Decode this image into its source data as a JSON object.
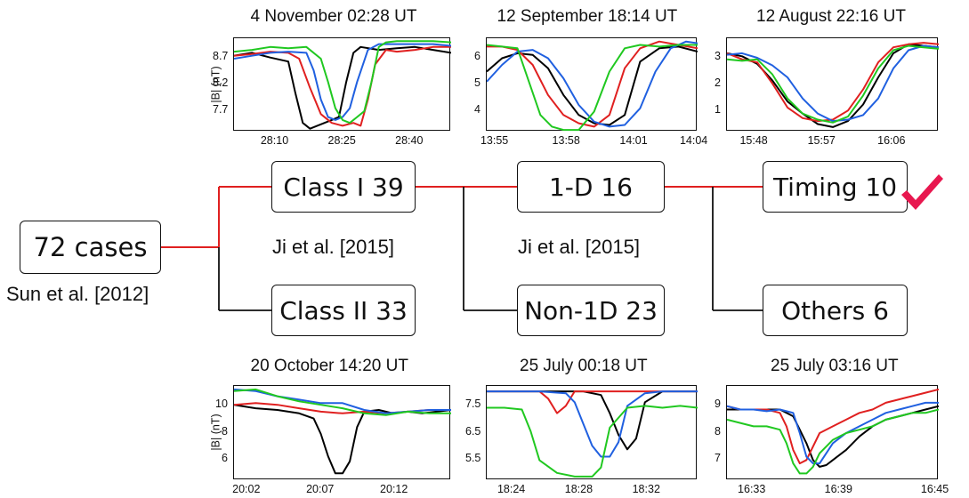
{
  "tree": {
    "root": {
      "label": "72 cases",
      "citation": "Sun et al. [2012]"
    },
    "class_one": {
      "label": "Class I 39"
    },
    "class_two": {
      "label": "Class II 33"
    },
    "split_one_citation": "Ji et al. [2015]",
    "one_d": {
      "label": "1-D 16"
    },
    "non_one_d": {
      "label": "Non-1D 23"
    },
    "split_two_citation": "Ji et al. [2015]",
    "timing": {
      "label": "Timing 10",
      "mark": "checkmark-icon"
    },
    "others": {
      "label": "Others 6"
    },
    "colors": {
      "accent": "#e02020",
      "line": "#111111",
      "check": "#e8174f"
    }
  },
  "chart_data": [
    {
      "type": "line",
      "title": "4 November 02:28 UT",
      "ylabel": "|B| (nT)",
      "yticks": [
        "8.7",
        "8.2",
        "7.7"
      ],
      "xticks": [
        "28:10",
        "28:25",
        "28:40"
      ],
      "xlim": [
        0,
        60
      ],
      "ylim": [
        7.35,
        8.95
      ],
      "series": [
        {
          "color": "#000000",
          "x": [
            0,
            5,
            10,
            15,
            17,
            19,
            21,
            23,
            25,
            27,
            29,
            31,
            33,
            35,
            40,
            45,
            50,
            55,
            60
          ],
          "y": [
            8.65,
            8.7,
            8.62,
            8.55,
            8.0,
            7.5,
            7.4,
            7.45,
            7.5,
            7.55,
            7.6,
            8.2,
            8.7,
            8.8,
            8.75,
            8.78,
            8.8,
            8.75,
            8.7
          ]
        },
        {
          "color": "#e02020",
          "x": [
            0,
            5,
            10,
            15,
            18,
            21,
            24,
            27,
            30,
            33,
            35,
            37,
            39,
            42,
            45,
            50,
            55,
            60
          ],
          "y": [
            8.65,
            8.68,
            8.72,
            8.7,
            8.6,
            8.1,
            7.65,
            7.5,
            7.45,
            7.5,
            7.45,
            7.9,
            8.5,
            8.75,
            8.72,
            8.75,
            8.8,
            8.8
          ]
        },
        {
          "color": "#2060e0",
          "x": [
            0,
            5,
            10,
            15,
            20,
            22,
            24,
            26,
            28,
            30,
            32,
            34,
            37,
            40,
            45,
            50,
            55,
            60
          ],
          "y": [
            8.6,
            8.65,
            8.7,
            8.72,
            8.7,
            8.4,
            7.9,
            7.6,
            7.55,
            7.6,
            7.75,
            8.2,
            8.75,
            8.85,
            8.85,
            8.85,
            8.85,
            8.82
          ]
        },
        {
          "color": "#20c820",
          "x": [
            0,
            5,
            10,
            15,
            20,
            24,
            26,
            28,
            30,
            32,
            34,
            36,
            38,
            40,
            42,
            45,
            50,
            55,
            60
          ],
          "y": [
            8.72,
            8.75,
            8.8,
            8.78,
            8.8,
            8.6,
            8.2,
            7.75,
            7.55,
            7.5,
            7.6,
            7.7,
            8.2,
            8.8,
            8.88,
            8.9,
            8.9,
            8.9,
            8.88
          ]
        }
      ]
    },
    {
      "type": "line",
      "title": "12 September 18:14 UT",
      "ylabel": "",
      "yticks": [
        "6",
        "5",
        "4"
      ],
      "xticks": [
        "13:55",
        "13:58",
        "14:01",
        "14:04"
      ],
      "xlim": [
        0,
        11
      ],
      "ylim": [
        3.5,
        6.3
      ],
      "series": [
        {
          "color": "#000000",
          "x": [
            0,
            0.8,
            1.6,
            2.4,
            3.2,
            4,
            4.8,
            5.6,
            6.4,
            7.2,
            8,
            9,
            10,
            11
          ],
          "y": [
            5.3,
            5.7,
            5.85,
            5.8,
            5.4,
            4.6,
            4.0,
            3.75,
            3.7,
            4.0,
            5.6,
            6.0,
            6.05,
            5.9
          ]
        },
        {
          "color": "#e02020",
          "x": [
            0,
            0.8,
            1.6,
            2.4,
            3.2,
            4,
            4.8,
            5.6,
            6.4,
            7.2,
            8,
            9,
            10,
            11
          ],
          "y": [
            6.05,
            6.05,
            5.95,
            5.5,
            4.6,
            4.0,
            3.75,
            3.65,
            4.0,
            5.4,
            6.0,
            6.2,
            6.1,
            6.0
          ]
        },
        {
          "color": "#2060e0",
          "x": [
            0,
            0.8,
            1.6,
            2.4,
            3.2,
            4,
            4.8,
            5.6,
            6.4,
            7.2,
            8,
            8.8,
            9.6,
            10.4,
            11
          ],
          "y": [
            5.0,
            5.5,
            5.9,
            5.95,
            5.7,
            5.1,
            4.3,
            3.8,
            3.65,
            3.7,
            4.2,
            5.3,
            6.0,
            6.2,
            6.15
          ]
        },
        {
          "color": "#20c820",
          "x": [
            0,
            0.8,
            1.6,
            2.2,
            2.8,
            3.4,
            4,
            4.8,
            5.6,
            6.4,
            7.2,
            8,
            9,
            10,
            11
          ],
          "y": [
            6.1,
            6.05,
            6.0,
            5.0,
            4.0,
            3.65,
            3.55,
            3.55,
            4.1,
            5.3,
            6.0,
            6.1,
            6.05,
            6.1,
            6.1
          ]
        }
      ]
    },
    {
      "type": "line",
      "title": "12 August 22:16 UT",
      "ylabel": "",
      "yticks": [
        "3",
        "2",
        "1"
      ],
      "xticks": [
        "15:48",
        "15:57",
        "16:06"
      ],
      "xlim": [
        0,
        28
      ],
      "ylim": [
        0.2,
        3.3
      ],
      "series": [
        {
          "color": "#000000",
          "x": [
            0,
            2,
            4,
            6,
            8,
            10,
            12,
            14,
            16,
            18,
            20,
            22,
            24,
            26,
            28
          ],
          "y": [
            2.8,
            2.7,
            2.45,
            1.9,
            1.2,
            0.8,
            0.45,
            0.35,
            0.55,
            1.1,
            2.0,
            2.8,
            3.1,
            3.05,
            3.0
          ]
        },
        {
          "color": "#e02020",
          "x": [
            0,
            2,
            4,
            6,
            8,
            10,
            12,
            14,
            16,
            18,
            20,
            22,
            24,
            26,
            28
          ],
          "y": [
            2.8,
            2.6,
            2.5,
            1.8,
            1.0,
            0.65,
            0.55,
            0.6,
            0.9,
            1.6,
            2.5,
            3.0,
            3.1,
            3.15,
            3.1
          ]
        },
        {
          "color": "#2060e0",
          "x": [
            0,
            2,
            4,
            6,
            8,
            10,
            12,
            14,
            16,
            18,
            20,
            22,
            24,
            26,
            28
          ],
          "y": [
            2.75,
            2.8,
            2.65,
            2.4,
            2.0,
            1.3,
            0.8,
            0.55,
            0.6,
            0.75,
            1.3,
            2.3,
            2.9,
            3.05,
            3.0
          ]
        },
        {
          "color": "#20c820",
          "x": [
            0,
            2,
            4,
            6,
            8,
            10,
            12,
            14,
            16,
            18,
            20,
            22,
            24,
            26,
            28
          ],
          "y": [
            2.6,
            2.55,
            2.6,
            2.1,
            1.3,
            0.8,
            0.6,
            0.5,
            0.7,
            1.4,
            2.3,
            2.9,
            3.05,
            3.0,
            2.95
          ]
        }
      ]
    },
    {
      "type": "line",
      "title": "20 October 14:20 UT",
      "ylabel": "|B| (nT)",
      "yticks": [
        "10",
        "8",
        "6"
      ],
      "xticks": [
        "20:02",
        "20:07",
        "20:12"
      ],
      "xlim": [
        0,
        15
      ],
      "ylim": [
        5.1,
        10.6
      ],
      "series": [
        {
          "color": "#000000",
          "x": [
            0,
            1.5,
            3,
            4.5,
            5.5,
            6,
            6.5,
            7,
            7.5,
            8,
            8.5,
            9,
            10,
            11,
            12,
            13,
            14,
            15
          ],
          "y": [
            9.5,
            9.3,
            9.2,
            9.0,
            8.7,
            7.8,
            6.5,
            5.5,
            5.5,
            6.2,
            8.2,
            9.1,
            9.2,
            9.0,
            9.1,
            9.0,
            9.1,
            9.2
          ]
        },
        {
          "color": "#e02020",
          "x": [
            0,
            1.5,
            3,
            4.5,
            6,
            7.5,
            9,
            10.5,
            12,
            13.5,
            15
          ],
          "y": [
            9.5,
            9.6,
            9.5,
            9.3,
            9.1,
            9.0,
            9.1,
            9.0,
            9.1,
            9.2,
            9.2
          ]
        },
        {
          "color": "#2060e0",
          "x": [
            0,
            1.5,
            3,
            4.5,
            6,
            7.5,
            9,
            10.5,
            12,
            13.5,
            15
          ],
          "y": [
            10.4,
            10.3,
            10.0,
            9.8,
            9.6,
            9.6,
            9.2,
            9.0,
            9.1,
            9.2,
            9.2
          ]
        },
        {
          "color": "#20c820",
          "x": [
            0,
            1.5,
            3,
            4.5,
            6,
            7.5,
            9,
            10.5,
            12,
            13.5,
            15
          ],
          "y": [
            10.3,
            10.4,
            10.0,
            9.7,
            9.5,
            9.3,
            9.0,
            8.9,
            9.1,
            9.0,
            9.0
          ]
        }
      ]
    },
    {
      "type": "line",
      "title": "25 July 00:18 UT",
      "ylabel": "",
      "yticks": [
        "7.5",
        "6.5",
        "5.5"
      ],
      "xticks": [
        "18:24",
        "18:28",
        "18:32"
      ],
      "xlim": [
        0,
        12
      ],
      "ylim": [
        5.35,
        7.95
      ],
      "series": [
        {
          "color": "#000000",
          "x": [
            0,
            1.5,
            3,
            4.5,
            5.5,
            6.5,
            7,
            7.5,
            8,
            8.5,
            9,
            10,
            11,
            12
          ],
          "y": [
            7.8,
            7.8,
            7.8,
            7.8,
            7.8,
            7.7,
            7.2,
            6.6,
            6.2,
            6.5,
            7.5,
            7.8,
            7.8,
            7.8
          ]
        },
        {
          "color": "#e02020",
          "x": [
            0,
            1.5,
            3,
            3.5,
            4,
            4.5,
            5,
            6,
            7,
            8,
            9,
            10,
            11,
            12
          ],
          "y": [
            7.8,
            7.8,
            7.8,
            7.6,
            7.2,
            7.4,
            7.8,
            7.8,
            7.8,
            7.8,
            7.8,
            7.8,
            7.8,
            7.8
          ]
        },
        {
          "color": "#2060e0",
          "x": [
            0,
            1.5,
            3,
            4.5,
            5,
            5.5,
            6,
            6.5,
            7,
            7.5,
            8,
            9,
            10,
            11,
            12
          ],
          "y": [
            7.8,
            7.8,
            7.8,
            7.75,
            7.5,
            6.9,
            6.3,
            6.0,
            6.0,
            6.4,
            7.4,
            7.75,
            7.8,
            7.8,
            7.8
          ]
        },
        {
          "color": "#20c820",
          "x": [
            0,
            1,
            2,
            2.5,
            3,
            4,
            5,
            6,
            6.5,
            7,
            8,
            9,
            10,
            11,
            12
          ],
          "y": [
            7.35,
            7.35,
            7.3,
            6.7,
            5.9,
            5.55,
            5.45,
            5.45,
            5.7,
            6.8,
            7.35,
            7.4,
            7.35,
            7.4,
            7.35
          ]
        }
      ]
    },
    {
      "type": "line",
      "title": "25 July 03:16 UT",
      "ylabel": "",
      "yticks": [
        "9",
        "8",
        "7"
      ],
      "xticks": [
        "16:33",
        "16:39",
        "16:45"
      ],
      "xlim": [
        0,
        16
      ],
      "ylim": [
        6.4,
        9.2
      ],
      "series": [
        {
          "color": "#000000",
          "x": [
            0,
            1,
            2,
            3,
            4,
            5,
            6,
            6.5,
            7,
            7.5,
            8,
            9,
            10,
            11,
            12,
            13,
            14,
            15,
            16
          ],
          "y": [
            8.5,
            8.5,
            8.5,
            8.5,
            8.5,
            8.3,
            7.5,
            7.0,
            6.8,
            6.85,
            7.0,
            7.3,
            7.7,
            8.0,
            8.2,
            8.3,
            8.4,
            8.5,
            8.6
          ]
        },
        {
          "color": "#e02020",
          "x": [
            0,
            1,
            2,
            3,
            4,
            4.5,
            5,
            5.5,
            6,
            7,
            8,
            9,
            10,
            11,
            12,
            13,
            14,
            15,
            16
          ],
          "y": [
            8.6,
            8.5,
            8.5,
            8.5,
            8.4,
            8.0,
            7.3,
            6.9,
            7.0,
            7.8,
            8.0,
            8.2,
            8.4,
            8.5,
            8.7,
            8.8,
            8.9,
            9.0,
            9.1
          ]
        },
        {
          "color": "#2060e0",
          "x": [
            0,
            1,
            2,
            3,
            4,
            5,
            5.5,
            6,
            6.5,
            7,
            7.5,
            8,
            9,
            10,
            11,
            12,
            13,
            14,
            15,
            16
          ],
          "y": [
            8.6,
            8.5,
            8.5,
            8.45,
            8.5,
            8.4,
            7.8,
            7.1,
            6.9,
            6.9,
            7.2,
            7.5,
            7.8,
            8.0,
            8.2,
            8.4,
            8.5,
            8.6,
            8.7,
            8.7
          ]
        },
        {
          "color": "#20c820",
          "x": [
            0,
            1,
            2,
            3,
            4,
            4.5,
            5,
            5.5,
            6,
            6.5,
            7,
            8,
            9,
            10,
            11,
            12,
            13,
            14,
            15,
            16
          ],
          "y": [
            8.2,
            8.1,
            8.0,
            8.0,
            7.9,
            7.5,
            6.9,
            6.6,
            6.6,
            6.8,
            7.2,
            7.6,
            7.8,
            7.9,
            8.0,
            8.2,
            8.3,
            8.4,
            8.4,
            8.5
          ]
        }
      ]
    }
  ]
}
